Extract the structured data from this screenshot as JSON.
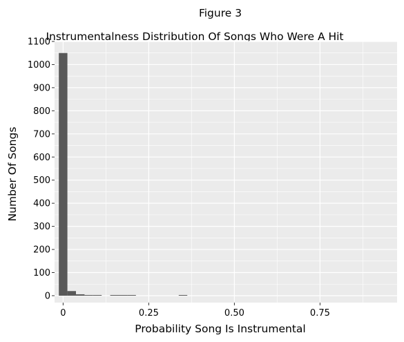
{
  "figure_title": "Figure 3",
  "chart_data": {
    "type": "bar",
    "subtype": "histogram",
    "title": "Instrumentalness Distribution Of Songs Who Were A Hit",
    "xlabel": "Probability Song Is Instrumental",
    "ylabel": "Number Of Songs",
    "xlim": [
      -0.025,
      0.975
    ],
    "ylim": [
      -30,
      1100
    ],
    "x_ticks": [
      0,
      0.25,
      0.5,
      0.75
    ],
    "x_tick_labels": [
      "0",
      "0.25",
      "0.50",
      "0.75"
    ],
    "y_ticks": [
      0,
      100,
      200,
      300,
      400,
      500,
      600,
      700,
      800,
      900,
      1000,
      1100
    ],
    "y_tick_labels": [
      "0",
      "100",
      "200",
      "300",
      "400",
      "500",
      "600",
      "700",
      "800",
      "900",
      "1000",
      "1100"
    ],
    "bin_width": 0.025,
    "bins": [
      {
        "x_start": -0.0125,
        "x_end": 0.0125,
        "count": 1050
      },
      {
        "x_start": 0.0125,
        "x_end": 0.0375,
        "count": 20
      },
      {
        "x_start": 0.0375,
        "x_end": 0.0625,
        "count": 6
      },
      {
        "x_start": 0.0625,
        "x_end": 0.0875,
        "count": 2
      },
      {
        "x_start": 0.0875,
        "x_end": 0.1125,
        "count": 2
      },
      {
        "x_start": 0.1375,
        "x_end": 0.1625,
        "count": 1
      },
      {
        "x_start": 0.1625,
        "x_end": 0.1875,
        "count": 1
      },
      {
        "x_start": 0.1875,
        "x_end": 0.2125,
        "count": 1
      },
      {
        "x_start": 0.3375,
        "x_end": 0.3625,
        "count": 1
      }
    ],
    "grid": true,
    "legend": "none",
    "colors": {
      "panel_background": "#ebebeb",
      "grid_major": "#ffffff",
      "bar_fill": "#595959",
      "tick_color": "#333333"
    }
  }
}
